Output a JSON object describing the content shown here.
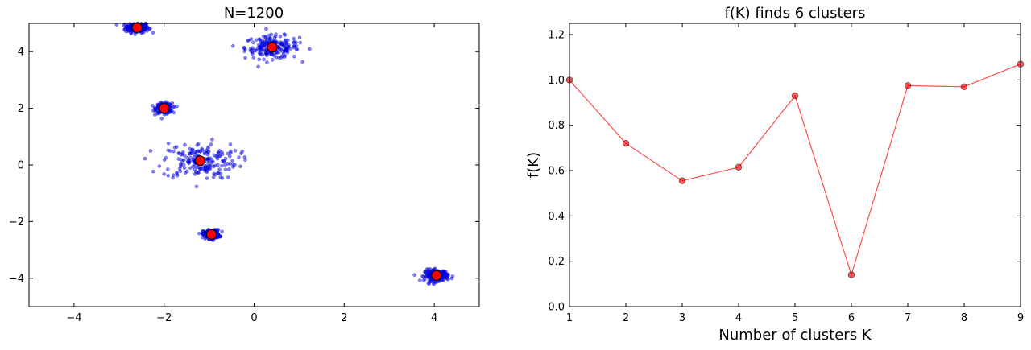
{
  "chart_data": [
    {
      "type": "scatter",
      "title": "N=1200",
      "xlabel": "",
      "ylabel": "",
      "xlim": [
        -5,
        5
      ],
      "ylim": [
        -5,
        5
      ],
      "xticks": [
        -4,
        -2,
        0,
        2,
        4
      ],
      "yticks": [
        -4,
        -2,
        0,
        2,
        4
      ],
      "xtick_labels": [
        "−4",
        "−2",
        "0",
        "2",
        "4"
      ],
      "ytick_labels": [
        "−4",
        "−2",
        "0",
        "2",
        "4"
      ],
      "grid": false,
      "points_total": 1200,
      "point_color": "#0000ff",
      "center_color": "#ff0000",
      "centers": [
        {
          "x": -2.6,
          "y": 4.85
        },
        {
          "x": 0.4,
          "y": 4.15
        },
        {
          "x": -2.0,
          "y": 2.0
        },
        {
          "x": -1.2,
          "y": 0.15
        },
        {
          "x": -0.95,
          "y": -2.45
        },
        {
          "x": 4.05,
          "y": -3.9
        }
      ],
      "clusters": [
        {
          "cx": -2.6,
          "cy": 4.85,
          "sx": 0.13,
          "sy": 0.09,
          "n": 200
        },
        {
          "cx": 0.4,
          "cy": 4.15,
          "sx": 0.3,
          "sy": 0.2,
          "n": 200
        },
        {
          "cx": -2.0,
          "cy": 2.0,
          "sx": 0.09,
          "sy": 0.09,
          "n": 200
        },
        {
          "cx": -1.2,
          "cy": 0.15,
          "sx": 0.42,
          "sy": 0.32,
          "n": 200
        },
        {
          "cx": -0.95,
          "cy": -2.45,
          "sx": 0.09,
          "sy": 0.08,
          "n": 200
        },
        {
          "cx": 4.05,
          "cy": -3.9,
          "sx": 0.13,
          "sy": 0.1,
          "n": 200
        }
      ]
    },
    {
      "type": "line",
      "title": "f(K) finds 6 clusters",
      "xlabel": "Number of clusters K",
      "ylabel": "f(K)",
      "xlim": [
        1,
        9
      ],
      "ylim": [
        0,
        1.25
      ],
      "xticks": [
        1,
        2,
        3,
        4,
        5,
        6,
        7,
        8,
        9
      ],
      "yticks": [
        0.0,
        0.2,
        0.4,
        0.6,
        0.8,
        1.0,
        1.2
      ],
      "xtick_labels": [
        "1",
        "2",
        "3",
        "4",
        "5",
        "6",
        "7",
        "8",
        "9"
      ],
      "ytick_labels": [
        "0.0",
        "0.2",
        "0.4",
        "0.6",
        "0.8",
        "1.0",
        "1.2"
      ],
      "grid": false,
      "color": "#ff0000",
      "x": [
        1,
        2,
        3,
        4,
        5,
        6,
        7,
        8,
        9
      ],
      "y": [
        1.0,
        0.72,
        0.555,
        0.615,
        0.93,
        0.14,
        0.975,
        0.97,
        1.07
      ]
    }
  ]
}
